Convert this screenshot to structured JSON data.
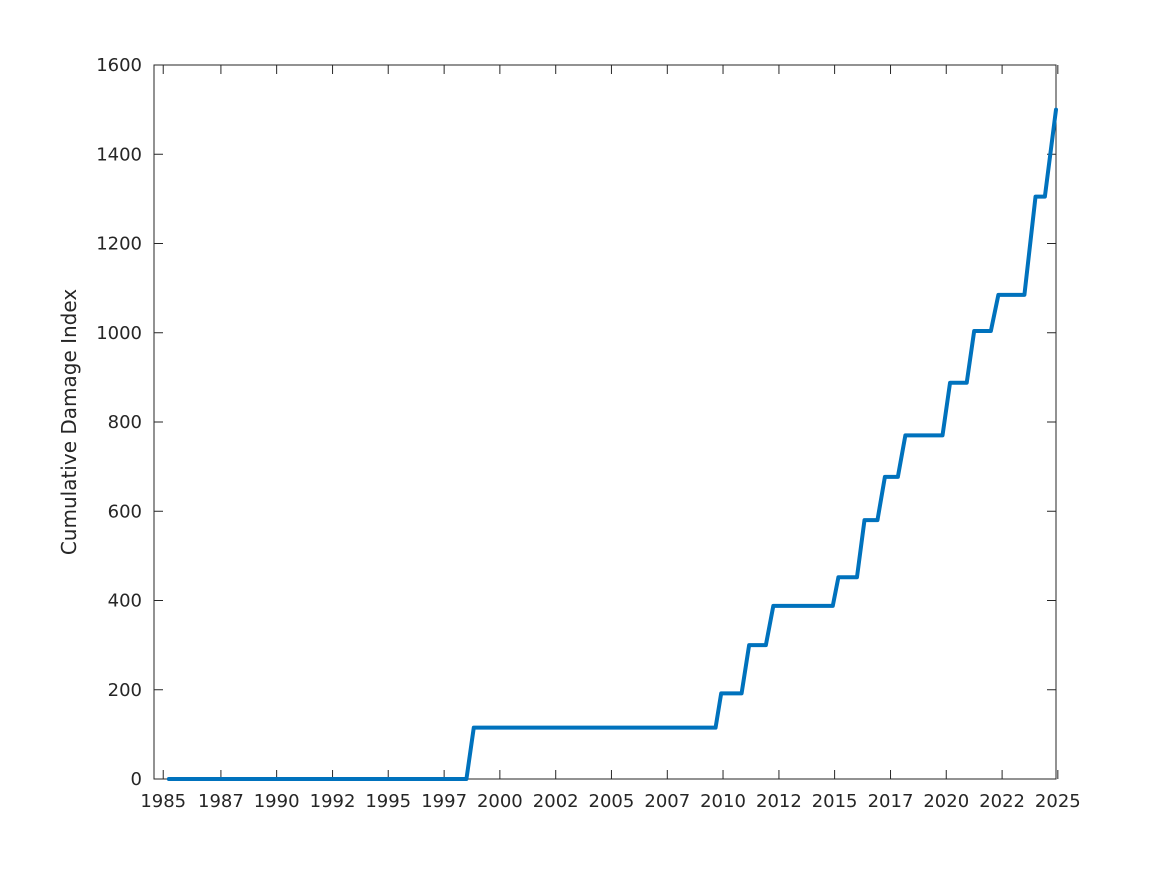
{
  "chart_data": {
    "type": "line",
    "title": "",
    "xlabel": "",
    "ylabel": "Cumulative Damage Index",
    "xlim": [
      "1985-01-01",
      "2025-06-01"
    ],
    "ylim": [
      0,
      1600
    ],
    "xticks": [
      {
        "label": "1985",
        "date": "1985-06-01"
      },
      {
        "label": "1987",
        "date": "1988-01-01"
      },
      {
        "label": "1990",
        "date": "1990-07-01"
      },
      {
        "label": "1992",
        "date": "1993-01-01"
      },
      {
        "label": "1995",
        "date": "1995-07-01"
      },
      {
        "label": "1997",
        "date": "1998-01-01"
      },
      {
        "label": "2000",
        "date": "2000-07-01"
      },
      {
        "label": "2002",
        "date": "2003-01-01"
      },
      {
        "label": "2005",
        "date": "2005-07-01"
      },
      {
        "label": "2007",
        "date": "2008-01-01"
      },
      {
        "label": "2010",
        "date": "2010-07-01"
      },
      {
        "label": "2012",
        "date": "2013-01-01"
      },
      {
        "label": "2015",
        "date": "2015-07-01"
      },
      {
        "label": "2017",
        "date": "2018-01-01"
      },
      {
        "label": "2020",
        "date": "2020-07-01"
      },
      {
        "label": "2022",
        "date": "2023-01-01"
      },
      {
        "label": "2025",
        "date": "2025-07-01"
      }
    ],
    "yticks": [
      0,
      200,
      400,
      600,
      800,
      1000,
      1200,
      1400,
      1600
    ],
    "grid": false,
    "line_color": "#0072BD",
    "series": [
      {
        "points": [
          [
            "1985-09-01",
            0
          ],
          [
            "1999-01-01",
            0
          ],
          [
            "1999-05-01",
            115
          ],
          [
            "2010-03-01",
            115
          ],
          [
            "2010-06-01",
            192
          ],
          [
            "2011-05-01",
            192
          ],
          [
            "2011-09-01",
            300
          ],
          [
            "2012-06-01",
            300
          ],
          [
            "2012-10-01",
            388
          ],
          [
            "2015-06-01",
            388
          ],
          [
            "2015-09-01",
            452
          ],
          [
            "2016-07-01",
            452
          ],
          [
            "2016-11-01",
            580
          ],
          [
            "2017-06-01",
            580
          ],
          [
            "2017-10-01",
            677
          ],
          [
            "2018-05-01",
            677
          ],
          [
            "2018-09-01",
            770
          ],
          [
            "2020-05-01",
            770
          ],
          [
            "2020-09-01",
            888
          ],
          [
            "2021-06-01",
            888
          ],
          [
            "2021-10-01",
            1004
          ],
          [
            "2022-07-01",
            1004
          ],
          [
            "2022-11-01",
            1085
          ],
          [
            "2024-01-01",
            1085
          ],
          [
            "2024-07-01",
            1305
          ],
          [
            "2024-12-01",
            1305
          ],
          [
            "2025-06-01",
            1500
          ]
        ]
      }
    ]
  }
}
